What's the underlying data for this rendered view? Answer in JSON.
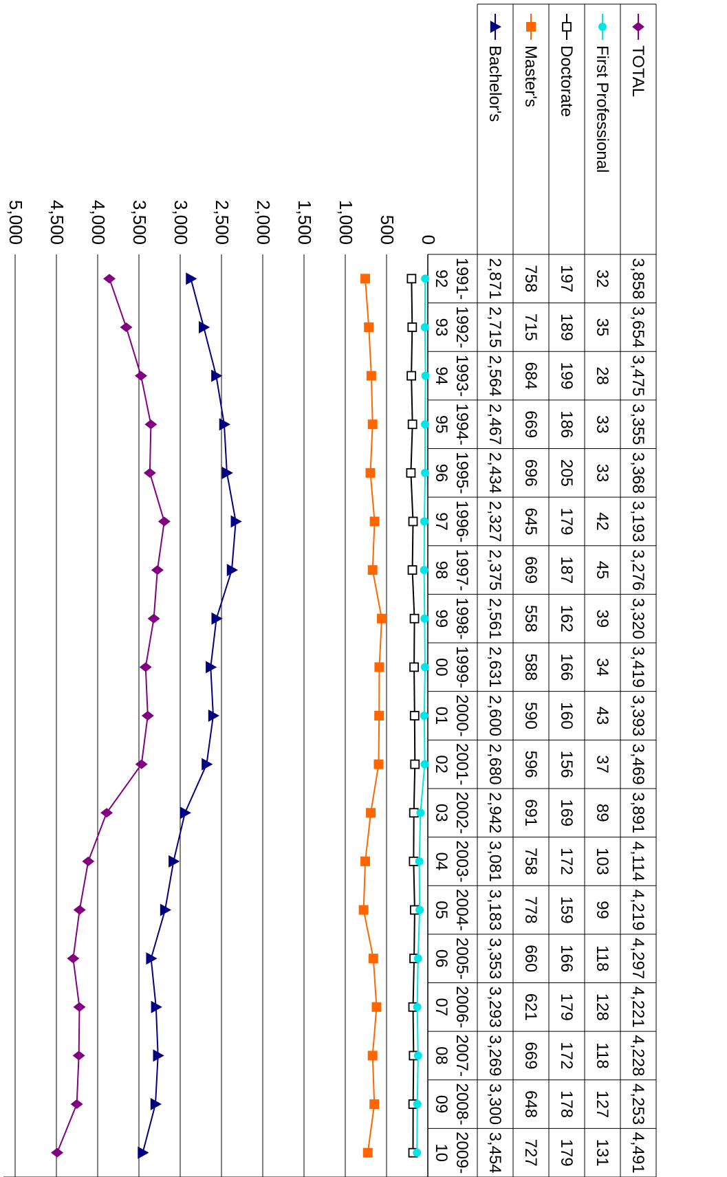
{
  "chart_data": {
    "type": "line",
    "orientation": "rotated-90-clockwise",
    "categories": [
      [
        "1991-",
        "92"
      ],
      [
        "1992-",
        "93"
      ],
      [
        "1993-",
        "94"
      ],
      [
        "1994-",
        "95"
      ],
      [
        "1995-",
        "96"
      ],
      [
        "1996-",
        "97"
      ],
      [
        "1997-",
        "98"
      ],
      [
        "1998-",
        "99"
      ],
      [
        "1999-",
        "00"
      ],
      [
        "2000-",
        "01"
      ],
      [
        "2001-",
        "02"
      ],
      [
        "2002-",
        "03"
      ],
      [
        "2003-",
        "04"
      ],
      [
        "2004-",
        "05"
      ],
      [
        "2005-",
        "06"
      ],
      [
        "2006-",
        "07"
      ],
      [
        "2007-",
        "08"
      ],
      [
        "2008-",
        "09"
      ],
      [
        "2009-",
        "10"
      ]
    ],
    "series": [
      {
        "name": "Bachelor's",
        "color": "#000080",
        "marker": "triangle",
        "values": [
          2871,
          2715,
          2564,
          2467,
          2434,
          2327,
          2375,
          2561,
          2631,
          2600,
          2680,
          2942,
          3081,
          3183,
          3353,
          3293,
          3269,
          3300,
          3454
        ],
        "labels": [
          "2,871",
          "2,715",
          "2,564",
          "2,467",
          "2,434",
          "2,327",
          "2,375",
          "2,561",
          "2,631",
          "2,600",
          "2,680",
          "2,942",
          "3,081",
          "3,183",
          "3,353",
          "3,293",
          "3,269",
          "3,300",
          "3,454"
        ]
      },
      {
        "name": "Master's",
        "color": "#ff6600",
        "marker": "square",
        "values": [
          758,
          715,
          684,
          669,
          696,
          645,
          669,
          558,
          588,
          590,
          596,
          691,
          758,
          778,
          660,
          621,
          669,
          648,
          727
        ],
        "labels": [
          "758",
          "715",
          "684",
          "669",
          "696",
          "645",
          "669",
          "558",
          "588",
          "590",
          "596",
          "691",
          "758",
          "778",
          "660",
          "621",
          "669",
          "648",
          "727"
        ]
      },
      {
        "name": "Doctorate",
        "color": "#000000",
        "marker": "open-square",
        "values": [
          197,
          189,
          199,
          186,
          205,
          179,
          187,
          162,
          166,
          160,
          156,
          169,
          172,
          159,
          166,
          179,
          172,
          178,
          179
        ],
        "labels": [
          "197",
          "189",
          "199",
          "186",
          "205",
          "179",
          "187",
          "162",
          "166",
          "160",
          "156",
          "169",
          "172",
          "159",
          "166",
          "179",
          "172",
          "178",
          "179"
        ]
      },
      {
        "name": "First Professional",
        "color": "#00e5e5",
        "marker": "circle",
        "values": [
          32,
          35,
          28,
          33,
          33,
          42,
          45,
          39,
          34,
          43,
          37,
          89,
          103,
          99,
          118,
          128,
          118,
          127,
          131
        ],
        "labels": [
          "32",
          "35",
          "28",
          "33",
          "33",
          "42",
          "45",
          "39",
          "34",
          "43",
          "37",
          "89",
          "103",
          "99",
          "118",
          "128",
          "118",
          "127",
          "131"
        ]
      },
      {
        "name": "TOTAL",
        "color": "#800080",
        "marker": "diamond",
        "values": [
          3858,
          3654,
          3475,
          3355,
          3368,
          3193,
          3276,
          3320,
          3419,
          3393,
          3469,
          3891,
          4114,
          4219,
          4297,
          4221,
          4228,
          4253,
          4491
        ],
        "labels": [
          "3,858",
          "3,654",
          "3,475",
          "3,355",
          "3,368",
          "3,193",
          "3,276",
          "3,320",
          "3,419",
          "3,393",
          "3,469",
          "3,891",
          "4,114",
          "4,219",
          "4,297",
          "4,221",
          "4,228",
          "4,253",
          "4,491"
        ]
      }
    ],
    "y_ticks": [
      0,
      500,
      1000,
      1500,
      2000,
      2500,
      3000,
      3500,
      4000,
      4500,
      5000
    ],
    "y_tick_labels": [
      "0",
      "500",
      "1,000",
      "1,500",
      "2,000",
      "2,500",
      "3,000",
      "3,500",
      "4,000",
      "4,500",
      "5,000"
    ],
    "ylim": [
      0,
      5000
    ],
    "grid": true,
    "legend": "data-table-rows"
  }
}
